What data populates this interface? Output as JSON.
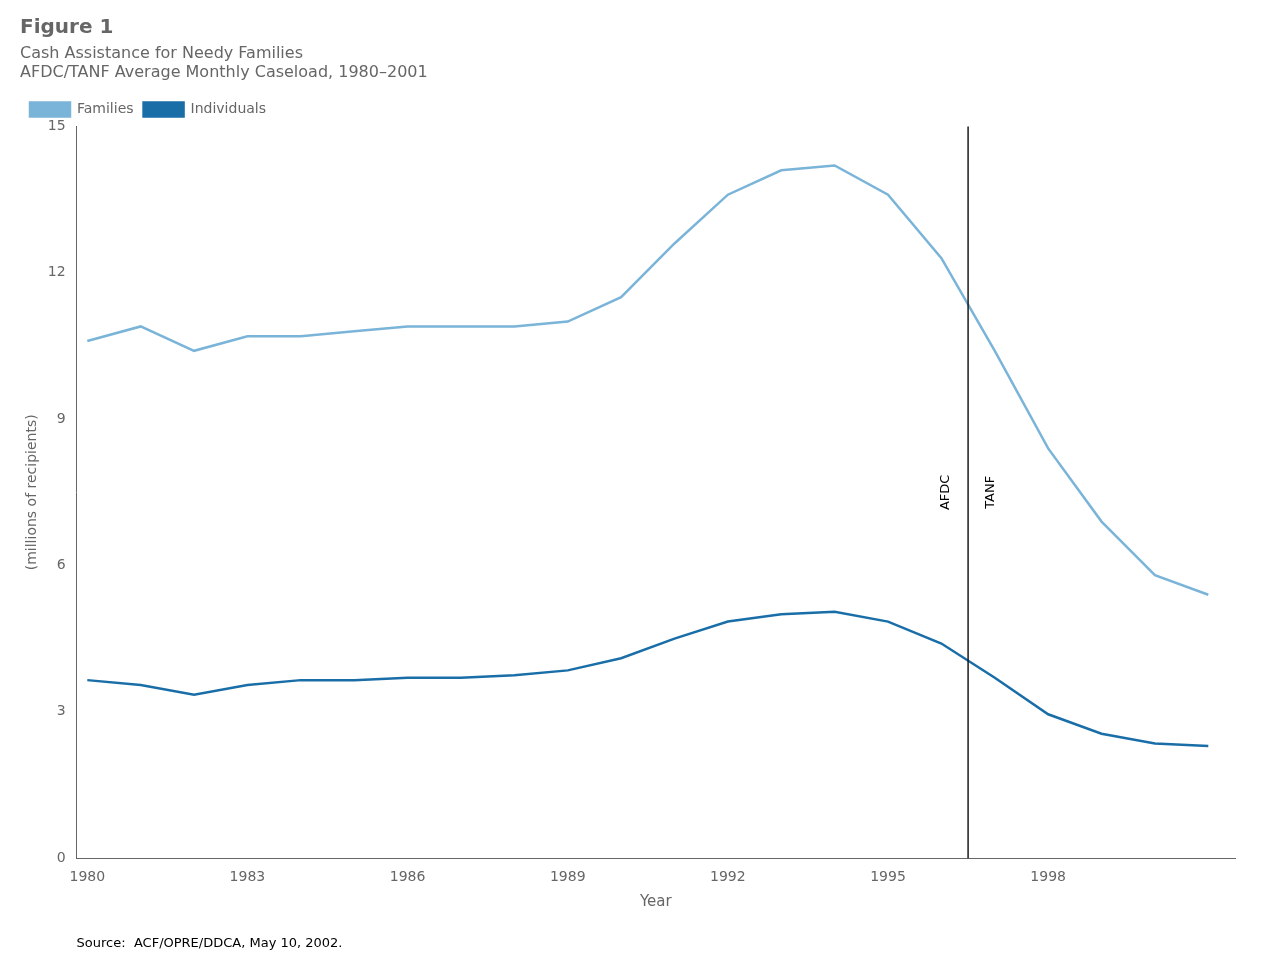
{
  "chart_data": {
    "type": "line",
    "title": "Figure 1",
    "subtitle": [
      "Cash Assistance for Needy Families",
      "AFDC/TANF Average Monthly Caseload, 1980–2001"
    ],
    "xlabel": "Year",
    "ylabel": "(millions of recipients)",
    "source": "Source:  ACF/OPRE/DDCA, May 10, 2002.",
    "x": [
      1980,
      1981,
      1982,
      1983,
      1984,
      1985,
      1986,
      1987,
      1988,
      1989,
      1990,
      1991,
      1992,
      1993,
      1994,
      1995,
      1996,
      1997,
      1998,
      1999,
      2000,
      2001
    ],
    "series": [
      {
        "name": "Families",
        "color": "#7ab4d8",
        "values": [
          10.6,
          10.9,
          10.4,
          10.7,
          10.7,
          10.8,
          10.9,
          10.9,
          10.9,
          11.0,
          11.5,
          12.6,
          13.6,
          14.1,
          14.2,
          13.6,
          12.3,
          10.4,
          8.4,
          6.9,
          5.8,
          5.4
        ]
      },
      {
        "name": "Individuals",
        "color": "#1a6ea8",
        "values": [
          3.65,
          3.55,
          3.35,
          3.55,
          3.65,
          3.65,
          3.7,
          3.7,
          3.75,
          3.85,
          4.1,
          4.5,
          4.85,
          5.0,
          5.05,
          4.85,
          4.4,
          3.7,
          2.95,
          2.55,
          2.35,
          2.3
        ]
      }
    ],
    "xlim": [
      1979.8,
      2001.5
    ],
    "xticks": [
      1980,
      1983,
      1986,
      1989,
      1992,
      1995,
      1998
    ],
    "ylim": [
      0,
      15
    ],
    "yticks": [
      0,
      3,
      6,
      9,
      12,
      15
    ],
    "grid": false,
    "legend": "top",
    "annotations": [
      {
        "type": "vline",
        "x": 1996.5,
        "color": "#1a1a1a"
      },
      {
        "text": "AFDC",
        "x": 1996.2,
        "y": 7.5
      },
      {
        "text": "TANF",
        "x": 1996.8,
        "y": 7.5
      }
    ]
  }
}
